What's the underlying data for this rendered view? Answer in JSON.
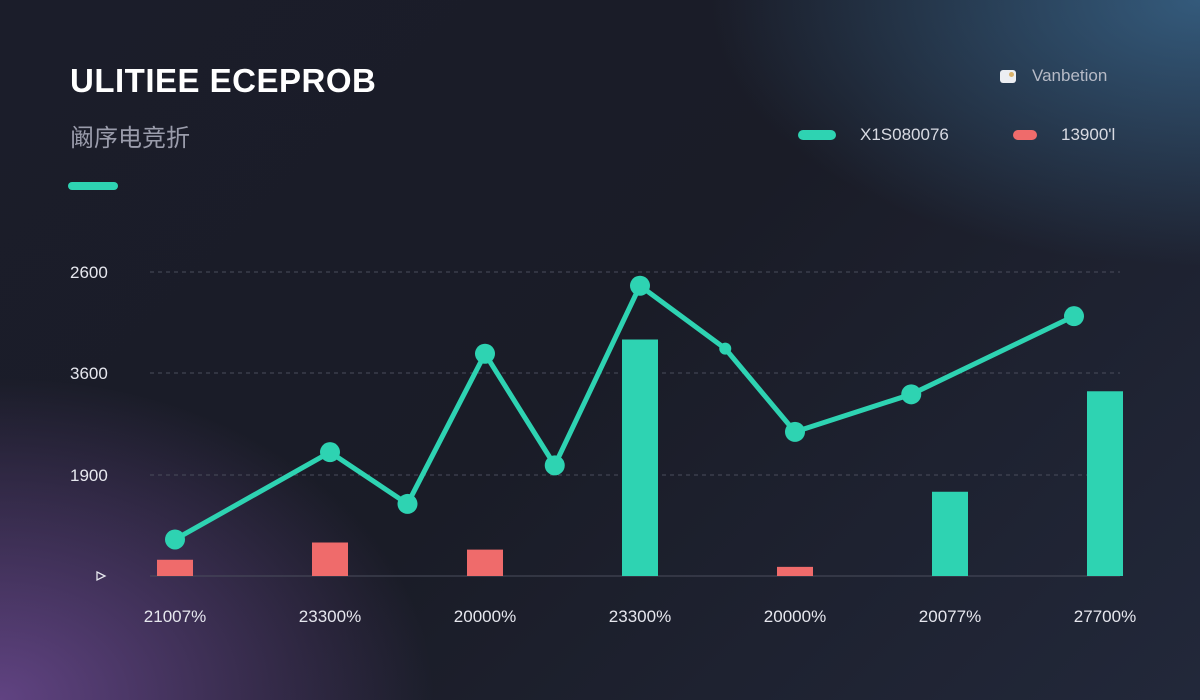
{
  "header": {
    "title": "ULITIEE ECEPROB",
    "subtitle": "阚序电竞折",
    "top_right_label": "Vanbetion",
    "top_right_icon": "image-icon"
  },
  "colors": {
    "line": "#2ed3b2",
    "bar_primary": "#2ed3b2",
    "bar_secondary": "#ef6b6b",
    "grid": "#4a4d5c",
    "axis_text": "#e6e7ee"
  },
  "chart_data": {
    "type": "bar",
    "legend": {
      "placement": "top-right"
    },
    "grid": true,
    "y_ticks": [
      "2600",
      "3600",
      "1900",
      ""
    ],
    "x_labels": [
      "21007%",
      "23300%",
      "20000%",
      "23300%",
      "20000%",
      "20077%",
      "27700%"
    ],
    "series": [
      {
        "name": "X1S080076",
        "kind": "line",
        "color": "#2ed3b2",
        "x": [
          0,
          1,
          1.5,
          2,
          2.45,
          3,
          3.55,
          4,
          4.75,
          5.8
        ],
        "values": [
          0.36,
          1.22,
          0.71,
          2.19,
          1.09,
          2.86,
          2.24,
          1.42,
          1.79,
          2.56
        ]
      },
      {
        "name": "X1S080076",
        "kind": "bar",
        "color": "#2ed3b2",
        "values": [
          0,
          0,
          0,
          2.33,
          0,
          0.83,
          1.82
        ]
      },
      {
        "name": "13900'l",
        "kind": "bar",
        "color": "#ef6b6b",
        "values": [
          0.16,
          0.33,
          0.26,
          0,
          0.09,
          0,
          0
        ]
      }
    ]
  }
}
